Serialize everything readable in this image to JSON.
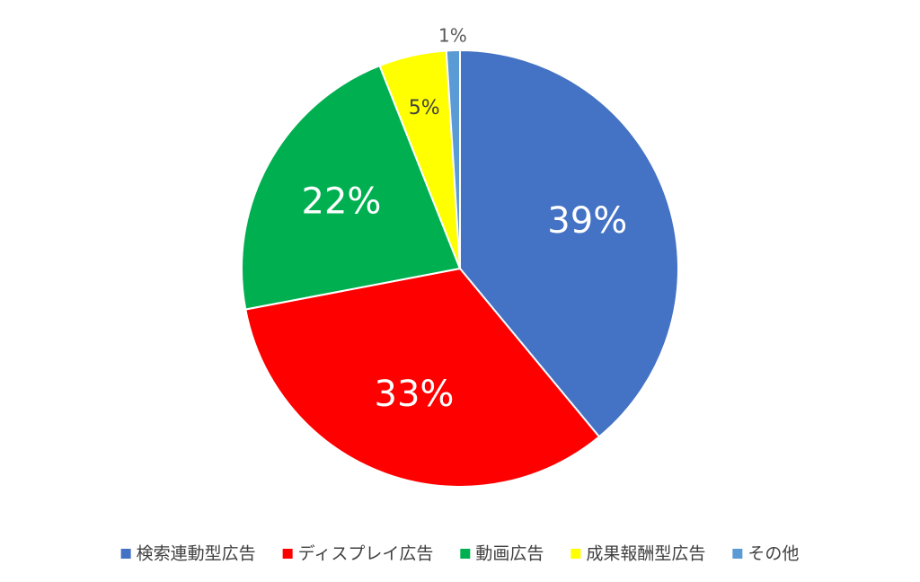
{
  "chart_data": {
    "type": "pie",
    "categories": [
      "検索連動型広告",
      "ディスプレイ広告",
      "動画広告",
      "成果報酬型広告",
      "その他"
    ],
    "values": [
      39,
      33,
      22,
      5,
      1
    ],
    "value_labels": [
      "39%",
      "33%",
      "22%",
      "5%",
      "1%"
    ],
    "colors": [
      "#4472c4",
      "#ff0000",
      "#00b050",
      "#ffff00",
      "#5b9bd5"
    ],
    "legend": "bottom"
  }
}
